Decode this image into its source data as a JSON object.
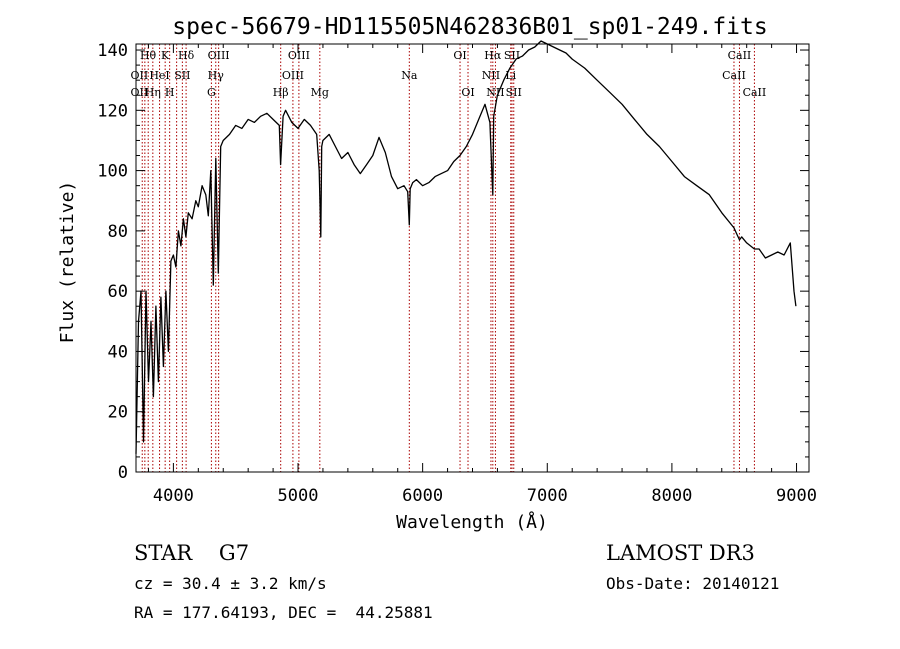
{
  "chart_data": {
    "type": "line",
    "title": "spec-56679-HD115505N462836B01_sp01-249.fits",
    "xlabel": "Wavelength (Å)",
    "ylabel": "Flux (relative)",
    "xlim": [
      3700,
      9100
    ],
    "ylim": [
      0,
      142
    ],
    "x_ticks": [
      4000,
      5000,
      6000,
      7000,
      8000,
      9000
    ],
    "y_ticks": [
      0,
      20,
      40,
      60,
      80,
      100,
      120,
      140
    ],
    "x_tick_labels": [
      "4000",
      "5000",
      "6000",
      "7000",
      "8000",
      "9000"
    ],
    "y_tick_labels": [
      "0",
      "20",
      "40",
      "60",
      "80",
      "100",
      "120",
      "140"
    ],
    "series": [
      {
        "name": "spectrum",
        "color": "#000000",
        "x": [
          3700,
          3720,
          3740,
          3760,
          3780,
          3800,
          3820,
          3840,
          3860,
          3880,
          3900,
          3920,
          3940,
          3960,
          3980,
          4000,
          4020,
          4040,
          4060,
          4080,
          4100,
          4120,
          4150,
          4180,
          4200,
          4230,
          4260,
          4280,
          4300,
          4320,
          4340,
          4360,
          4380,
          4400,
          4450,
          4500,
          4550,
          4600,
          4650,
          4700,
          4750,
          4800,
          4850,
          4860,
          4880,
          4900,
          4950,
          5000,
          5050,
          5100,
          5150,
          5170,
          5183,
          5190,
          5200,
          5250,
          5300,
          5350,
          5400,
          5450,
          5500,
          5550,
          5600,
          5650,
          5700,
          5750,
          5800,
          5850,
          5880,
          5893,
          5900,
          5920,
          5950,
          6000,
          6050,
          6100,
          6150,
          6200,
          6250,
          6300,
          6350,
          6400,
          6450,
          6500,
          6540,
          6555,
          6563,
          6570,
          6600,
          6650,
          6700,
          6750,
          6800,
          6850,
          6900,
          6950,
          7000,
          7050,
          7100,
          7150,
          7200,
          7300,
          7400,
          7500,
          7600,
          7700,
          7800,
          7900,
          8000,
          8100,
          8200,
          8300,
          8400,
          8498,
          8520,
          8542,
          8560,
          8600,
          8662,
          8700,
          8750,
          8800,
          8850,
          8900,
          8950,
          8980,
          8995
        ],
        "y": [
          6,
          50,
          60,
          10,
          60,
          30,
          50,
          25,
          55,
          30,
          58,
          35,
          60,
          40,
          70,
          72,
          68,
          80,
          75,
          84,
          78,
          86,
          84,
          90,
          88,
          95,
          92,
          85,
          100,
          62,
          104,
          66,
          108,
          110,
          112,
          115,
          114,
          117,
          116,
          118,
          119,
          117,
          115,
          102,
          118,
          120,
          116,
          114,
          117,
          115,
          112,
          100,
          78,
          108,
          110,
          112,
          108,
          104,
          106,
          102,
          99,
          102,
          105,
          111,
          106,
          98,
          94,
          95,
          93,
          82,
          94,
          96,
          97,
          95,
          96,
          98,
          99,
          100,
          103,
          105,
          108,
          112,
          117,
          122,
          116,
          100,
          92,
          118,
          125,
          130,
          134,
          137,
          138,
          140,
          141,
          143,
          142,
          141,
          140,
          139,
          137,
          134,
          130,
          126,
          122,
          117,
          112,
          108,
          103,
          98,
          95,
          92,
          86,
          81,
          79,
          77,
          78,
          76,
          74,
          74,
          71,
          72,
          73,
          72,
          76,
          60,
          55
        ],
        "line_width": 1.3
      }
    ],
    "line_markers": [
      {
        "x": 3750,
        "color": "#aa0000"
      },
      {
        "x": 3771,
        "color": "#aa0000"
      },
      {
        "x": 3798,
        "color": "#aa0000"
      },
      {
        "x": 3835,
        "color": "#aa0000"
      },
      {
        "x": 3889,
        "color": "#aa0000"
      },
      {
        "x": 3934,
        "color": "#aa0000"
      },
      {
        "x": 3970,
        "color": "#aa0000"
      },
      {
        "x": 4026,
        "color": "#aa0000"
      },
      {
        "x": 4072,
        "color": "#aa0000"
      },
      {
        "x": 4102,
        "color": "#aa0000"
      },
      {
        "x": 4305,
        "color": "#aa0000"
      },
      {
        "x": 4340,
        "color": "#aa0000"
      },
      {
        "x": 4363,
        "color": "#aa0000"
      },
      {
        "x": 4861,
        "color": "#aa0000"
      },
      {
        "x": 4959,
        "color": "#aa0000"
      },
      {
        "x": 5007,
        "color": "#aa0000"
      },
      {
        "x": 5175,
        "color": "#aa0000"
      },
      {
        "x": 5893,
        "color": "#aa0000"
      },
      {
        "x": 6300,
        "color": "#aa0000"
      },
      {
        "x": 6364,
        "color": "#aa0000"
      },
      {
        "x": 6548,
        "color": "#aa0000"
      },
      {
        "x": 6563,
        "color": "#aa0000"
      },
      {
        "x": 6584,
        "color": "#aa0000"
      },
      {
        "x": 6707,
        "color": "#aa0000"
      },
      {
        "x": 6717,
        "color": "#aa0000"
      },
      {
        "x": 6731,
        "color": "#aa0000"
      },
      {
        "x": 8498,
        "color": "#aa0000"
      },
      {
        "x": 8542,
        "color": "#aa0000"
      },
      {
        "x": 8662,
        "color": "#aa0000"
      }
    ],
    "line_labels": [
      {
        "text": "Hθ",
        "x": 3797,
        "row": 0
      },
      {
        "text": "K",
        "x": 3934,
        "row": 0
      },
      {
        "text": "Hδ",
        "x": 4102,
        "row": 0
      },
      {
        "text": "OIII",
        "x": 4363,
        "row": 0
      },
      {
        "text": "OIII",
        "x": 5007,
        "row": 0
      },
      {
        "text": "OI",
        "x": 6300,
        "row": 0
      },
      {
        "text": "Hα",
        "x": 6563,
        "row": 0
      },
      {
        "text": "SII",
        "x": 6717,
        "row": 0
      },
      {
        "text": "CaII",
        "x": 8542,
        "row": 0
      },
      {
        "text": "OII",
        "x": 3727,
        "row": 1
      },
      {
        "text": "HeI",
        "x": 3889,
        "row": 1
      },
      {
        "text": "SII",
        "x": 4072,
        "row": 1
      },
      {
        "text": "Hγ",
        "x": 4340,
        "row": 1
      },
      {
        "text": "OIII",
        "x": 4959,
        "row": 1
      },
      {
        "text": "Na",
        "x": 5893,
        "row": 1
      },
      {
        "text": "NII",
        "x": 6548,
        "row": 1
      },
      {
        "text": "Li",
        "x": 6707,
        "row": 1
      },
      {
        "text": "CaII",
        "x": 8498,
        "row": 1
      },
      {
        "text": "OII",
        "x": 3727,
        "row": 2
      },
      {
        "text": "Hη",
        "x": 3835,
        "row": 2
      },
      {
        "text": "H",
        "x": 3970,
        "row": 2
      },
      {
        "text": "G",
        "x": 4305,
        "row": 2
      },
      {
        "text": "Hβ",
        "x": 4861,
        "row": 2
      },
      {
        "text": "Mg",
        "x": 5175,
        "row": 2
      },
      {
        "text": "OI",
        "x": 6364,
        "row": 2
      },
      {
        "text": "NII",
        "x": 6584,
        "row": 2
      },
      {
        "text": "SII",
        "x": 6731,
        "row": 2
      },
      {
        "text": "CaII",
        "x": 8662,
        "row": 2
      }
    ]
  },
  "info": {
    "class_line": "STAR    G7",
    "cz_line": "cz = 30.4 ± 3.2 km/s",
    "radec_line": "RA = 177.64193, DEC =  44.25881",
    "survey": "LAMOST DR3",
    "obs_date": "Obs-Date: 20140121"
  }
}
